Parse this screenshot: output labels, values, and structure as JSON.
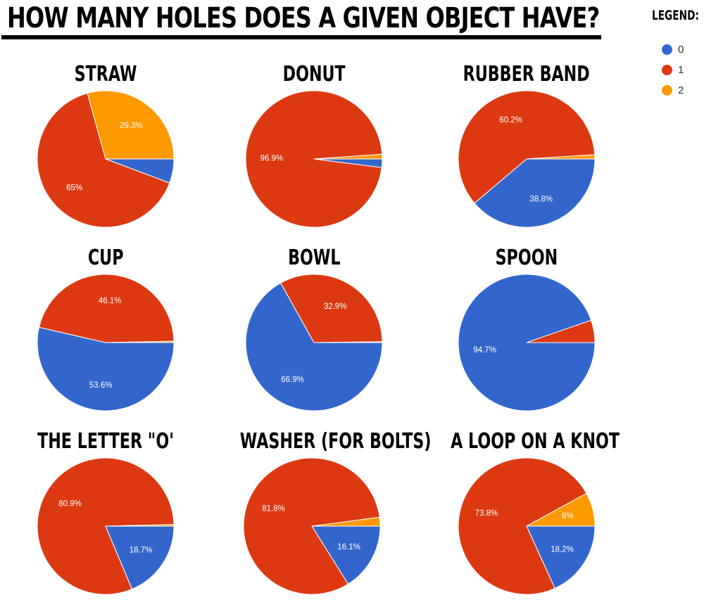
{
  "header": {
    "title": "HOW MANY HOLES DOES A GIVEN OBJECT HAVE?"
  },
  "legend": {
    "title": "LEGEND:",
    "items": [
      {
        "label": "0",
        "color": "#3366cc"
      },
      {
        "label": "1",
        "color": "#dc3912"
      },
      {
        "label": "2",
        "color": "#ff9900"
      }
    ]
  },
  "colors": {
    "0": "#3366cc",
    "1": "#dc3912",
    "2": "#ff9900"
  },
  "chart_data": [
    {
      "type": "pie",
      "title": "STRAW",
      "categories": [
        "0",
        "1",
        "2"
      ],
      "values": [
        5.7,
        65.0,
        29.3
      ],
      "labels": [
        "",
        "65%",
        "29.3%"
      ]
    },
    {
      "type": "pie",
      "title": "DONUT",
      "categories": [
        "0",
        "1",
        "2"
      ],
      "values": [
        2.0,
        96.9,
        1.1
      ],
      "labels": [
        "",
        "96.9%",
        ""
      ]
    },
    {
      "type": "pie",
      "title": "RUBBER BAND",
      "categories": [
        "0",
        "1",
        "2"
      ],
      "values": [
        38.8,
        60.2,
        1.0
      ],
      "labels": [
        "38.8%",
        "60.2%",
        ""
      ]
    },
    {
      "type": "pie",
      "title": "CUP",
      "categories": [
        "0",
        "1",
        "2"
      ],
      "values": [
        53.6,
        46.1,
        0.3
      ],
      "labels": [
        "53.6%",
        "46.1%",
        ""
      ]
    },
    {
      "type": "pie",
      "title": "BOWL",
      "categories": [
        "0",
        "1",
        "2"
      ],
      "values": [
        66.9,
        32.9,
        0.2
      ],
      "labels": [
        "66.9%",
        "32.9%",
        ""
      ]
    },
    {
      "type": "pie",
      "title": "SPOON",
      "categories": [
        "0",
        "1",
        "2"
      ],
      "values": [
        94.7,
        5.3,
        0.0
      ],
      "labels": [
        "94.7%",
        "",
        ""
      ]
    },
    {
      "type": "pie",
      "title": "THE LETTER \"O'",
      "categories": [
        "0",
        "1",
        "2"
      ],
      "values": [
        18.7,
        80.9,
        0.4
      ],
      "labels": [
        "18.7%",
        "80.9%",
        ""
      ]
    },
    {
      "type": "pie",
      "title": "WASHER (FOR BOLTS)",
      "categories": [
        "0",
        "1",
        "2"
      ],
      "values": [
        16.1,
        81.8,
        2.1
      ],
      "labels": [
        "16.1%",
        "81.8%",
        ""
      ]
    },
    {
      "type": "pie",
      "title": "A LOOP ON A KNOT",
      "categories": [
        "0",
        "1",
        "2"
      ],
      "values": [
        18.2,
        73.8,
        8.0
      ],
      "labels": [
        "18.2%",
        "73.8%",
        "8%"
      ]
    }
  ]
}
